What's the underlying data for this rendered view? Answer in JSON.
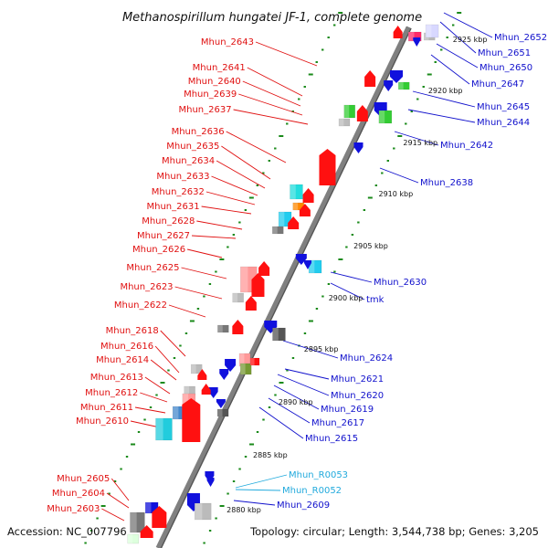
{
  "title": "Methanospirillum hungatei JF-1, complete genome",
  "accession": "Accession: NC_007796",
  "topology": "Topology: circular; Length: 3,544,738 bp; Genes: 3,205",
  "colors": {
    "left_label": "#e01010",
    "right_label": "#1010cc",
    "rna_label": "#22aadd",
    "backbone": "#808080",
    "tick": "#1a8a1a"
  },
  "kbp_markers": [
    "2925 kbp",
    "2920 kbp",
    "2915 kbp",
    "2910 kbp",
    "2905 kbp",
    "2900 kbp",
    "2895 kbp",
    "2890 kbp",
    "2885 kbp",
    "2880 kbp"
  ],
  "left_labels": [
    "Mhun_2643",
    "Mhun_2641",
    "Mhun_2640",
    "Mhun_2639",
    "Mhun_2637",
    "Mhun_2636",
    "Mhun_2635",
    "Mhun_2634",
    "Mhun_2633",
    "Mhun_2632",
    "Mhun_2631",
    "Mhun_2628",
    "Mhun_2627",
    "Mhun_2626",
    "Mhun_2625",
    "Mhun_2623",
    "Mhun_2622",
    "Mhun_2618",
    "Mhun_2616",
    "Mhun_2614",
    "Mhun_2613",
    "Mhun_2612",
    "Mhun_2611",
    "Mhun_2610",
    "Mhun_2605",
    "Mhun_2604",
    "Mhun_2603"
  ],
  "right_labels": [
    "Mhun_2652",
    "Mhun_2651",
    "Mhun_2650",
    "Mhun_2647",
    "Mhun_2645",
    "Mhun_2644",
    "Mhun_2642",
    "Mhun_2638",
    "Mhun_2630",
    "tmk",
    "Mhun_2624",
    "Mhun_2621",
    "Mhun_2620",
    "Mhun_2619",
    "Mhun_2617",
    "Mhun_2615",
    "Mhun_R0053",
    "Mhun_R0052",
    "Mhun_2609"
  ]
}
